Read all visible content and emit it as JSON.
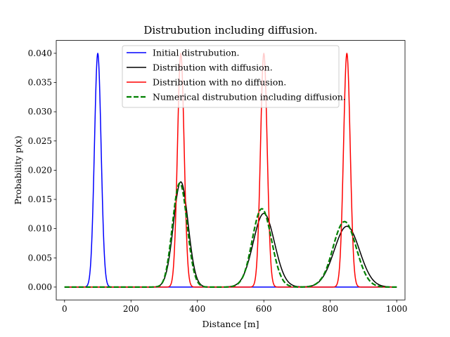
{
  "chart_data": {
    "type": "line",
    "title": "Distrubution including diffusion.",
    "xlabel": "Distance [m]",
    "ylabel": "Probability p(x)",
    "xlim": [
      -25,
      1025
    ],
    "ylim": [
      -0.0022,
      0.0422
    ],
    "xticks": [
      {
        "value": 0,
        "label": "0"
      },
      {
        "value": 200,
        "label": "200"
      },
      {
        "value": 400,
        "label": "400"
      },
      {
        "value": 600,
        "label": "600"
      },
      {
        "value": 800,
        "label": "800"
      },
      {
        "value": 1000,
        "label": "1000"
      }
    ],
    "yticks": [
      {
        "value": 0.0,
        "label": "0.000"
      },
      {
        "value": 0.005,
        "label": "0.005"
      },
      {
        "value": 0.01,
        "label": "0.010"
      },
      {
        "value": 0.015,
        "label": "0.015"
      },
      {
        "value": 0.02,
        "label": "0.020"
      },
      {
        "value": 0.025,
        "label": "0.025"
      },
      {
        "value": 0.03,
        "label": "0.030"
      },
      {
        "value": 0.035,
        "label": "0.035"
      },
      {
        "value": 0.04,
        "label": "0.040"
      }
    ],
    "grid": false,
    "legend_position": "top-center",
    "series": [
      {
        "name": "Initial distrubution.",
        "color": "#0000ff",
        "style": "solid",
        "peaks": [
          {
            "center": 100,
            "height": 0.04,
            "sigma": 10
          }
        ]
      },
      {
        "name": "Distribution with diffusion.",
        "color": "#000000",
        "style": "solid",
        "peaks": [
          {
            "center": 350,
            "height": 0.018,
            "sigma": 22
          },
          {
            "center": 600,
            "height": 0.0126,
            "sigma": 32
          },
          {
            "center": 850,
            "height": 0.0104,
            "sigma": 38
          }
        ]
      },
      {
        "name": "Distribution with no diffusion.",
        "color": "#ff0000",
        "style": "solid",
        "peaks": [
          {
            "center": 350,
            "height": 0.04,
            "sigma": 10
          },
          {
            "center": 600,
            "height": 0.04,
            "sigma": 10
          },
          {
            "center": 850,
            "height": 0.04,
            "sigma": 10
          }
        ]
      },
      {
        "name": "Numerical distrubution including diffusion.",
        "color": "#008000",
        "style": "dashed",
        "peaks": [
          {
            "center": 347,
            "height": 0.0178,
            "sigma": 22
          },
          {
            "center": 594,
            "height": 0.0134,
            "sigma": 29
          },
          {
            "center": 843,
            "height": 0.0112,
            "sigma": 35
          }
        ],
        "ringing": [
          {
            "center": 300,
            "amplitude": -0.0003
          },
          {
            "center": 545,
            "amplitude": -0.0002
          },
          {
            "center": 790,
            "amplitude": -0.0002
          }
        ]
      }
    ]
  }
}
